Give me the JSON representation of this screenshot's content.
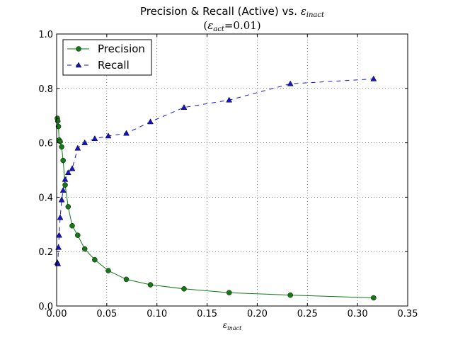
{
  "chart_data": {
    "type": "line",
    "title": {
      "main": "Precision & Recall (Active) vs. ",
      "main_symbol": "ε",
      "main_subscript": "inact",
      "subtitle_open": "(",
      "subtitle_symbol": "ε",
      "subtitle_subscript": "act",
      "subtitle_value": "=0.01)"
    },
    "xlabel": {
      "symbol": "ε",
      "subscript": "inact"
    },
    "ylabel": "",
    "xlim": [
      0,
      0.35
    ],
    "ylim": [
      0,
      1.0
    ],
    "xticks": [
      "0.00",
      "0.05",
      "0.10",
      "0.15",
      "0.20",
      "0.25",
      "0.30",
      "0.35"
    ],
    "yticks": [
      "0.0",
      "0.2",
      "0.4",
      "0.6",
      "0.8",
      "1.0"
    ],
    "xtick_values": [
      0,
      0.05,
      0.1,
      0.15,
      0.2,
      0.25,
      0.3,
      0.35
    ],
    "ytick_values": [
      0,
      0.2,
      0.4,
      0.6,
      0.8,
      1.0
    ],
    "grid": true,
    "legend_position": "top-left",
    "series": [
      {
        "name": "Precision",
        "color": "#147814",
        "marker": "circle",
        "linestyle": "solid",
        "x": [
          0.0007,
          0.0012,
          0.0018,
          0.0025,
          0.0035,
          0.005,
          0.0065,
          0.0085,
          0.0115,
          0.0155,
          0.021,
          0.028,
          0.038,
          0.0515,
          0.0695,
          0.0935,
          0.127,
          0.172,
          0.233,
          0.316
        ],
        "y": [
          0.69,
          0.68,
          0.66,
          0.61,
          0.605,
          0.585,
          0.535,
          0.445,
          0.365,
          0.295,
          0.26,
          0.21,
          0.17,
          0.13,
          0.098,
          0.078,
          0.063,
          0.049,
          0.04,
          0.03
        ]
      },
      {
        "name": "Recall",
        "color": "#1414c8",
        "marker": "triangle",
        "linestyle": "dashed",
        "x": [
          0.0007,
          0.0012,
          0.0018,
          0.0025,
          0.0035,
          0.005,
          0.0065,
          0.0085,
          0.0115,
          0.0155,
          0.021,
          0.028,
          0.038,
          0.0515,
          0.0695,
          0.0935,
          0.127,
          0.172,
          0.233,
          0.316
        ],
        "y": [
          0.16,
          0.155,
          0.215,
          0.26,
          0.325,
          0.39,
          0.425,
          0.465,
          0.49,
          0.505,
          0.58,
          0.6,
          0.615,
          0.625,
          0.635,
          0.677,
          0.73,
          0.757,
          0.817,
          0.835
        ]
      }
    ]
  }
}
